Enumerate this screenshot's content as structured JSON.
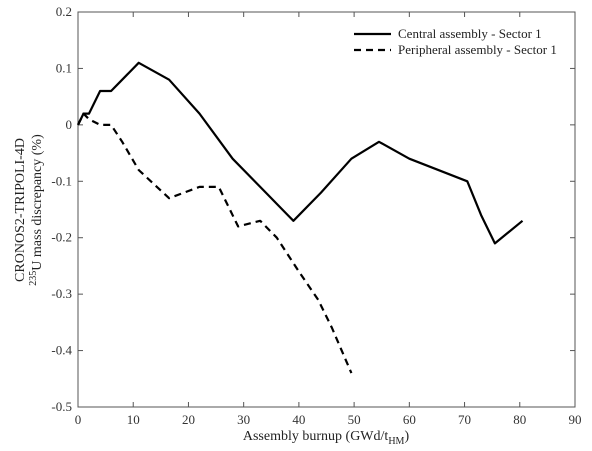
{
  "chart_data": {
    "type": "line",
    "xlabel": "Assembly burnup (GWd/t",
    "xlabel_sub": "HM",
    "xlabel_close": ")",
    "ylabel_line1": "CRONOS2-TRIPOLI-4D",
    "ylabel_sup": "235",
    "ylabel_line2": "U mass discrepancy (%)",
    "xlim": [
      0,
      90
    ],
    "ylim": [
      -0.5,
      0.2
    ],
    "xticks": [
      0,
      10,
      20,
      30,
      40,
      50,
      60,
      70,
      80,
      90
    ],
    "yticks": [
      0.2,
      0.1,
      0,
      -0.1,
      -0.2,
      -0.3,
      -0.4,
      -0.5
    ],
    "xtick_labels": [
      "0",
      "10",
      "20",
      "30",
      "40",
      "50",
      "60",
      "70",
      "80",
      "90"
    ],
    "ytick_labels": [
      "0.2",
      "0.1",
      "0",
      "-0.1",
      "-0.2",
      "-0.3",
      "-0.4",
      "-0.5"
    ],
    "grid": false,
    "legend_position": "top-right",
    "series": [
      {
        "name": "Central assembly - Sector 1",
        "style": "solid",
        "color": "#000000",
        "x": [
          0,
          1,
          2,
          4,
          6,
          8,
          11,
          16.5,
          22,
          28,
          33,
          38,
          39,
          44,
          49.5,
          54.5,
          60,
          70.5,
          73,
          75.5,
          80.5
        ],
        "y": [
          0,
          0.02,
          0.02,
          0.06,
          0.06,
          0.08,
          0.11,
          0.08,
          0.02,
          -0.06,
          -0.11,
          -0.16,
          -0.17,
          -0.12,
          -0.06,
          -0.03,
          -0.06,
          -0.1,
          -0.16,
          -0.21,
          -0.17
        ]
      },
      {
        "name": "Peripheral assembly - Sector 1",
        "style": "dashed",
        "color": "#000000",
        "x": [
          0,
          1,
          2,
          4,
          6,
          8,
          11,
          16.5,
          22,
          25.5,
          29,
          33,
          36,
          40,
          43.5,
          46,
          49.5
        ],
        "y": [
          0,
          0.02,
          0.01,
          0,
          0,
          -0.03,
          -0.08,
          -0.13,
          -0.11,
          -0.11,
          -0.18,
          -0.17,
          -0.2,
          -0.26,
          -0.31,
          -0.36,
          -0.44
        ]
      }
    ]
  }
}
